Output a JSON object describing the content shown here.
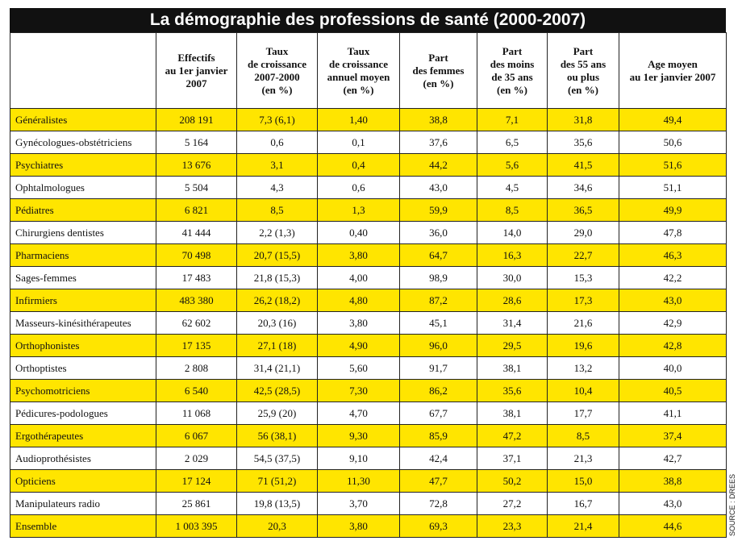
{
  "title": "La démographie des professions de santé (2000-2007)",
  "source": "SOURCE : DREES",
  "table": {
    "header": [
      [
        "Effectifs",
        "au 1er janvier",
        "2007"
      ],
      [
        "Taux",
        "de croissance",
        "2007-2000",
        "(en %)"
      ],
      [
        "Taux",
        "de croissance",
        "annuel moyen",
        "(en %)"
      ],
      [
        "Part",
        "des femmes",
        "(en %)"
      ],
      [
        "Part",
        "des moins",
        "de 35 ans",
        "(en %)"
      ],
      [
        "Part",
        "des 55 ans",
        "ou plus",
        "(en %)"
      ],
      [
        "Age moyen",
        "au 1er janvier 2007"
      ]
    ],
    "rows": [
      [
        "Généralistes",
        "208 191",
        "7,3 (6,1)",
        "1,40",
        "38,8",
        "7,1",
        "31,8",
        "49,4"
      ],
      [
        "Gynécologues-obstétriciens",
        "5 164",
        "0,6",
        "0,1",
        "37,6",
        "6,5",
        "35,6",
        "50,6"
      ],
      [
        "Psychiatres",
        "13 676",
        "3,1",
        "0,4",
        "44,2",
        "5,6",
        "41,5",
        "51,6"
      ],
      [
        "Ophtalmologues",
        "5 504",
        "4,3",
        "0,6",
        "43,0",
        "4,5",
        "34,6",
        "51,1"
      ],
      [
        "Pédiatres",
        "6 821",
        "8,5",
        "1,3",
        "59,9",
        "8,5",
        "36,5",
        "49,9"
      ],
      [
        "Chirurgiens dentistes",
        "41 444",
        "2,2 (1,3)",
        "0,40",
        "36,0",
        "14,0",
        "29,0",
        "47,8"
      ],
      [
        "Pharmaciens",
        "70 498",
        "20,7 (15,5)",
        "3,80",
        "64,7",
        "16,3",
        "22,7",
        "46,3"
      ],
      [
        "Sages-femmes",
        "17 483",
        "21,8 (15,3)",
        "4,00",
        "98,9",
        "30,0",
        "15,3",
        "42,2"
      ],
      [
        "Infirmiers",
        "483 380",
        "26,2 (18,2)",
        "4,80",
        "87,2",
        "28,6",
        "17,3",
        "43,0"
      ],
      [
        "Masseurs-kinésithérapeutes",
        "62 602",
        "20,3 (16)",
        "3,80",
        "45,1",
        "31,4",
        "21,6",
        "42,9"
      ],
      [
        "Orthophonistes",
        "17 135",
        "27,1 (18)",
        "4,90",
        "96,0",
        "29,5",
        "19,6",
        "42,8"
      ],
      [
        "Orthoptistes",
        "2 808",
        "31,4 (21,1)",
        "5,60",
        "91,7",
        "38,1",
        "13,2",
        "40,0"
      ],
      [
        "Psychomotriciens",
        "6 540",
        "42,5 (28,5)",
        "7,30",
        "86,2",
        "35,6",
        "10,4",
        "40,5"
      ],
      [
        "Pédicures-podologues",
        "11 068",
        "25,9 (20)",
        "4,70",
        "67,7",
        "38,1",
        "17,7",
        "41,1"
      ],
      [
        "Ergothérapeutes",
        "6 067",
        "56 (38,1)",
        "9,30",
        "85,9",
        "47,2",
        "8,5",
        "37,4"
      ],
      [
        "Audioprothésistes",
        "2 029",
        "54,5 (37,5)",
        "9,10",
        "42,4",
        "37,1",
        "21,3",
        "42,7"
      ],
      [
        "Opticiens",
        "17 124",
        "71 (51,2)",
        "11,30",
        "47,7",
        "50,2",
        "15,0",
        "38,8"
      ],
      [
        "Manipulateurs radio",
        "25 861",
        "19,8 (13,5)",
        "3,70",
        "72,8",
        "27,2",
        "16,7",
        "43,0"
      ],
      [
        "Ensemble",
        "1 003 395",
        "20,3",
        "3,80",
        "69,3",
        "23,3",
        "21,4",
        "44,6"
      ]
    ]
  }
}
